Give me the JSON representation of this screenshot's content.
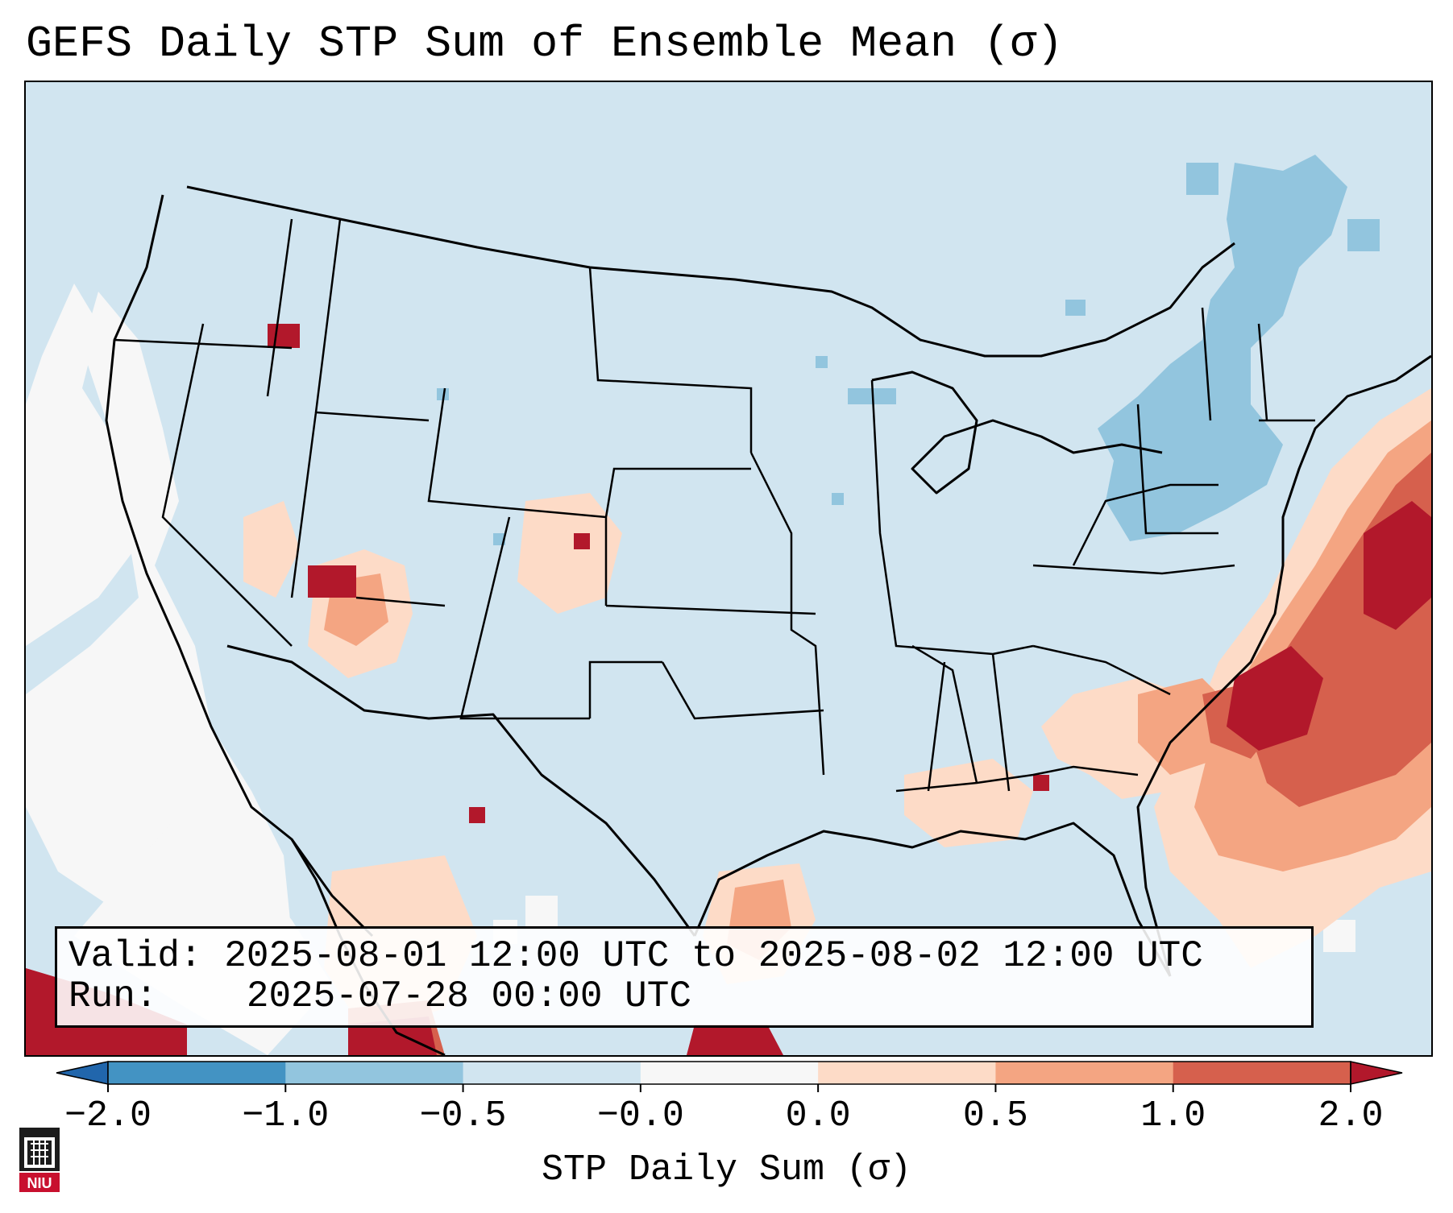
{
  "title": "GEFS Daily STP Sum of Ensemble Mean (σ)",
  "info": {
    "valid_label": "Valid:",
    "valid_value": "2025-08-01 12:00 UTC to 2025-08-02 12:00 UTC",
    "run_label": "Run:",
    "run_value": "2025-07-28 00:00 UTC"
  },
  "colorbar": {
    "label": "STP Daily Sum (σ)",
    "ticks": [
      "−2.0",
      "−1.0",
      "−0.5",
      "−0.0",
      "0.0",
      "0.5",
      "1.0",
      "2.0"
    ],
    "bins": [
      {
        "range": "< -2.0",
        "color": "#2166ac"
      },
      {
        "range": "-2.0 to -1.0",
        "color": "#4393c3"
      },
      {
        "range": "-1.0 to -0.5",
        "color": "#92c5de"
      },
      {
        "range": "-0.5 to -0.0",
        "color": "#d1e5f0"
      },
      {
        "range": "-0.0 to 0.0",
        "color": "#f7f7f7"
      },
      {
        "range": "0.0 to 0.5",
        "color": "#fddbc7"
      },
      {
        "range": "0.5 to 1.0",
        "color": "#f4a582"
      },
      {
        "range": "1.0 to 2.0",
        "color": "#d6604d"
      },
      {
        "range": "> 2.0",
        "color": "#b2182b"
      }
    ]
  },
  "map": {
    "background_color": "#d1e5f0",
    "regions": [
      {
        "name": "severe-region-mid-atlantic-coast",
        "level": "1.0 to 2.0"
      },
      {
        "name": "severe-region-carolina-offshore",
        "level": "> 2.0"
      },
      {
        "name": "region-southeast-elevated",
        "level": "0.5 to 1.0"
      },
      {
        "name": "region-northeast-negative",
        "level": "-1.0 to -0.5"
      },
      {
        "name": "region-west-coast-neutral",
        "level": "-0.0 to 0.0"
      },
      {
        "name": "region-four-corners-elevated",
        "level": "0.5 to 1.0"
      },
      {
        "name": "region-texas-coast-elevated",
        "level": "0.0 to 0.5"
      }
    ]
  },
  "logo": {
    "text": "NIU"
  }
}
